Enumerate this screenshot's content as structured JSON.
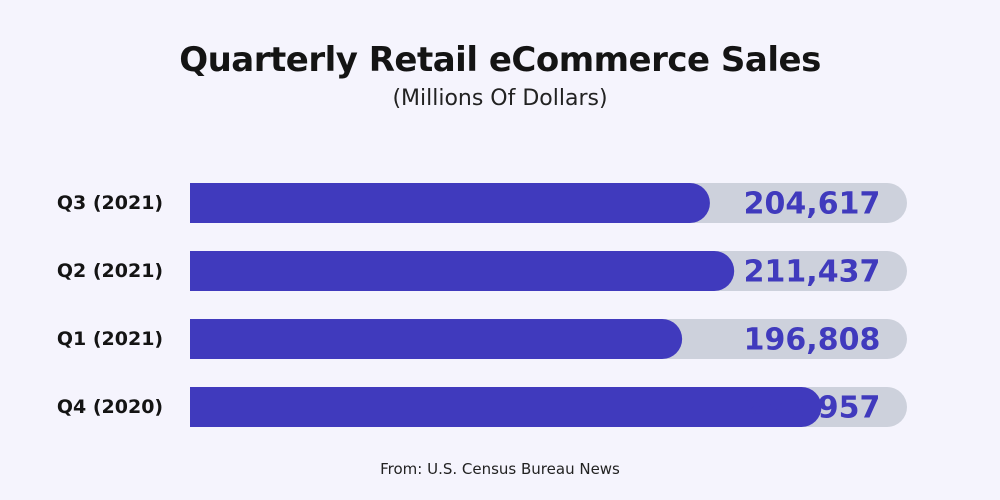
{
  "title": "Quarterly Retail eCommerce Sales",
  "subtitle": "(Millions Of Dollars)",
  "source": "From: U.S. Census Bureau News",
  "colors": {
    "background": "#f5f4fd",
    "bar": "#403abd",
    "track": "#cdd1dc",
    "value_text": "#403abd",
    "label_text": "#141414"
  },
  "chart_data": {
    "type": "bar",
    "orientation": "horizontal",
    "categories": [
      "Q3 (2021)",
      "Q2 (2021)",
      "Q1 (2021)",
      "Q4 (2020)"
    ],
    "values": [
      204617,
      211437,
      196808,
      235957
    ],
    "value_labels": [
      "204,617",
      "211,437",
      "196,808",
      "235,957"
    ],
    "title": "Quarterly Retail eCommerce Sales",
    "subtitle": "(Millions Of Dollars)",
    "xlabel": "",
    "ylabel": "",
    "grid": false,
    "legend": "none"
  }
}
